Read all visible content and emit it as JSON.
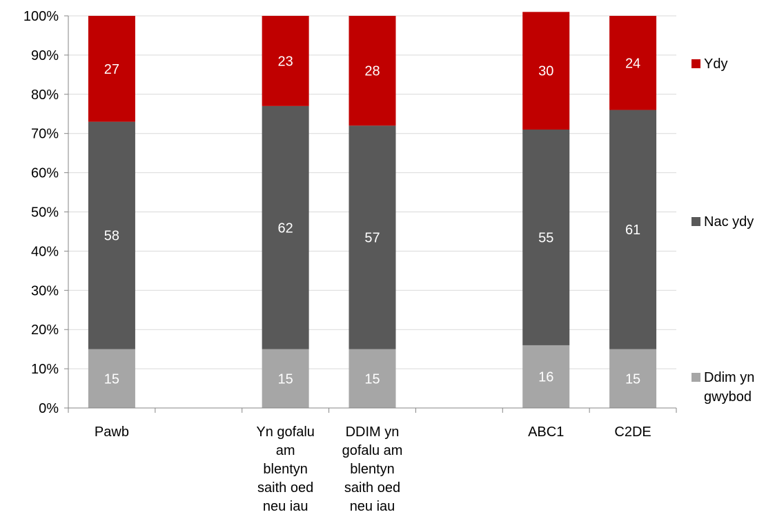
{
  "chart_data": {
    "type": "bar",
    "stacked": true,
    "percent_stacked": true,
    "categories": [
      "Pawb",
      "",
      "Yn gofalu am blentyn saith oed neu iau",
      "DDIM yn gofalu am blentyn saith oed neu iau",
      "",
      "ABC1",
      "C2DE"
    ],
    "category_lines": [
      [
        "Pawb"
      ],
      [],
      [
        "Yn gofalu",
        "am",
        "blentyn",
        "saith oed",
        "neu iau"
      ],
      [
        "DDIM yn",
        "gofalu am",
        "blentyn",
        "saith oed",
        "neu iau"
      ],
      [],
      [
        "ABC1"
      ],
      [
        "C2DE"
      ]
    ],
    "series": [
      {
        "name": "Ddim yn gwybod",
        "legend_lines": [
          "Ddim yn",
          "gwybod"
        ],
        "color": "#a6a6a6",
        "values": [
          15,
          null,
          15,
          15,
          null,
          16,
          15
        ]
      },
      {
        "name": "Nac ydy",
        "legend_lines": [
          "Nac ydy"
        ],
        "color": "#595959",
        "values": [
          58,
          null,
          62,
          57,
          null,
          55,
          61
        ]
      },
      {
        "name": "Ydy",
        "legend_lines": [
          "Ydy"
        ],
        "color": "#c00000",
        "values": [
          27,
          null,
          23,
          28,
          null,
          30,
          24
        ]
      }
    ],
    "yticks": [
      "0%",
      "10%",
      "20%",
      "30%",
      "40%",
      "50%",
      "60%",
      "70%",
      "80%",
      "90%",
      "100%"
    ],
    "ylim": [
      0,
      100
    ],
    "grid": true,
    "legend": "right",
    "title": "",
    "xlabel": "",
    "ylabel": ""
  }
}
